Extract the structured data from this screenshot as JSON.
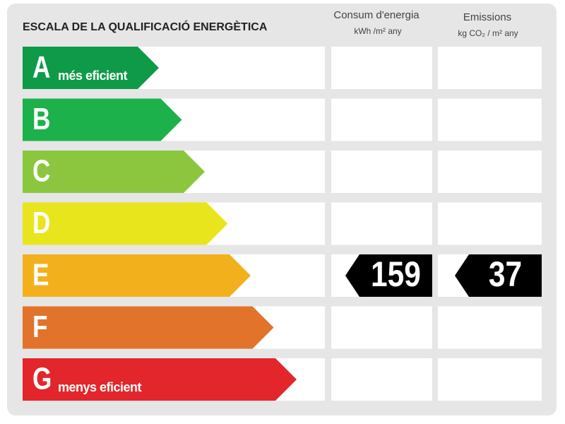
{
  "header": {
    "title": "ESCALA DE LA QUALIFICACIÓ ENERGÈTICA",
    "energy_title": "Consum d'energia",
    "energy_unit": "kWh /m² any",
    "emissions_title": "Emissions",
    "emissions_unit": "kg CO₂ / m² any"
  },
  "rows": [
    {
      "letter": "A",
      "label": "més eficient",
      "color": "#0f9a48"
    },
    {
      "letter": "B",
      "color": "#1db14b"
    },
    {
      "letter": "C",
      "color": "#8cc63f"
    },
    {
      "letter": "D",
      "color": "#e9e51c"
    },
    {
      "letter": "E",
      "color": "#f2b11c",
      "energy": 159,
      "emissions": 37
    },
    {
      "letter": "F",
      "color": "#e2732b"
    },
    {
      "letter": "G",
      "label": "menys eficient",
      "color": "#e3262b"
    }
  ]
}
